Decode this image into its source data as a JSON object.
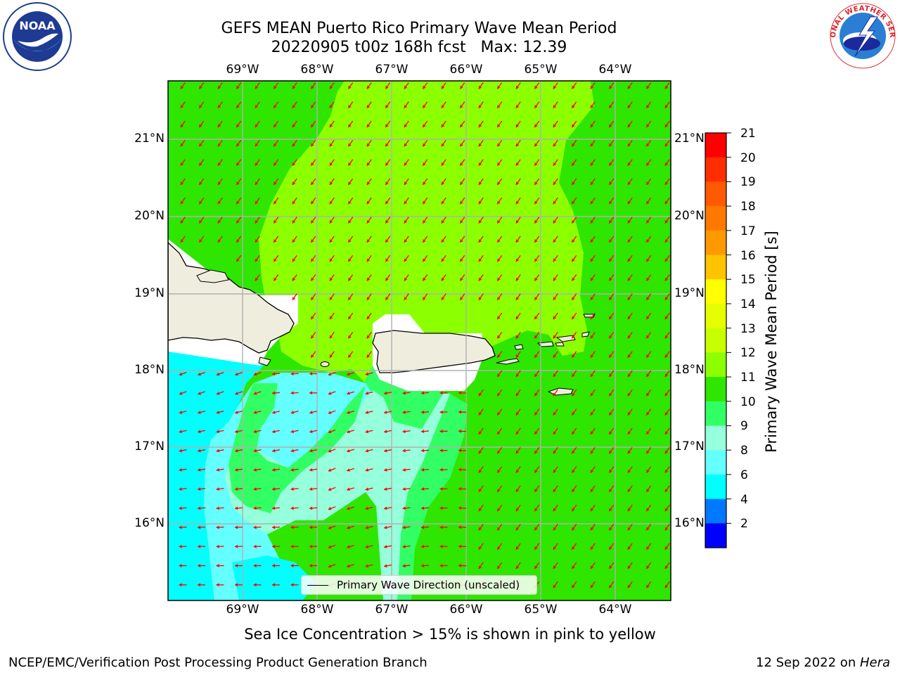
{
  "title": {
    "line1": "GEFS MEAN Puerto Rico Primary Wave Mean Period",
    "line2": "20220905 t00z 168h fcst   Max: 12.39"
  },
  "map": {
    "lon_labels": [
      "69°W",
      "68°W",
      "67°W",
      "66°W",
      "65°W",
      "64°W"
    ],
    "lat_labels": [
      "21°N",
      "20°N",
      "19°N",
      "18°N",
      "17°N",
      "16°N"
    ],
    "land_color": "#efedde",
    "arrow_color": "#ff0000",
    "features": [
      "hispaniola",
      "puerto-rico",
      "virgin-islands",
      "mona-island"
    ]
  },
  "colorbar": {
    "label": "Primary Wave Mean Period [s]",
    "ticks": [
      "21",
      "20",
      "19",
      "18",
      "17",
      "16",
      "15",
      "14",
      "13",
      "12",
      "11",
      "10",
      "9",
      "8",
      "6",
      "4",
      "2"
    ],
    "colors": [
      "#ff0000",
      "#ff2d00",
      "#ff5a00",
      "#ff7800",
      "#ff9900",
      "#ffc300",
      "#ffff00",
      "#e6ff00",
      "#c8ff00",
      "#8cff00",
      "#2ee600",
      "#32ff64",
      "#96ffdc",
      "#64ffff",
      "#00ffff",
      "#0078ff",
      "#0000ff"
    ]
  },
  "legend": {
    "label": "Primary Wave Direction (unscaled)"
  },
  "note": "Sea Ice Concentration > 15% is shown in pink to yellow",
  "footer": {
    "left": "NCEP/EMC/Verification Post Processing Product Generation Branch",
    "right_prefix": "12 Sep 2022 on ",
    "right_host": "Hera"
  },
  "logos": {
    "left": "NOAA",
    "right": "NATIONAL WEATHER SERVICE"
  }
}
